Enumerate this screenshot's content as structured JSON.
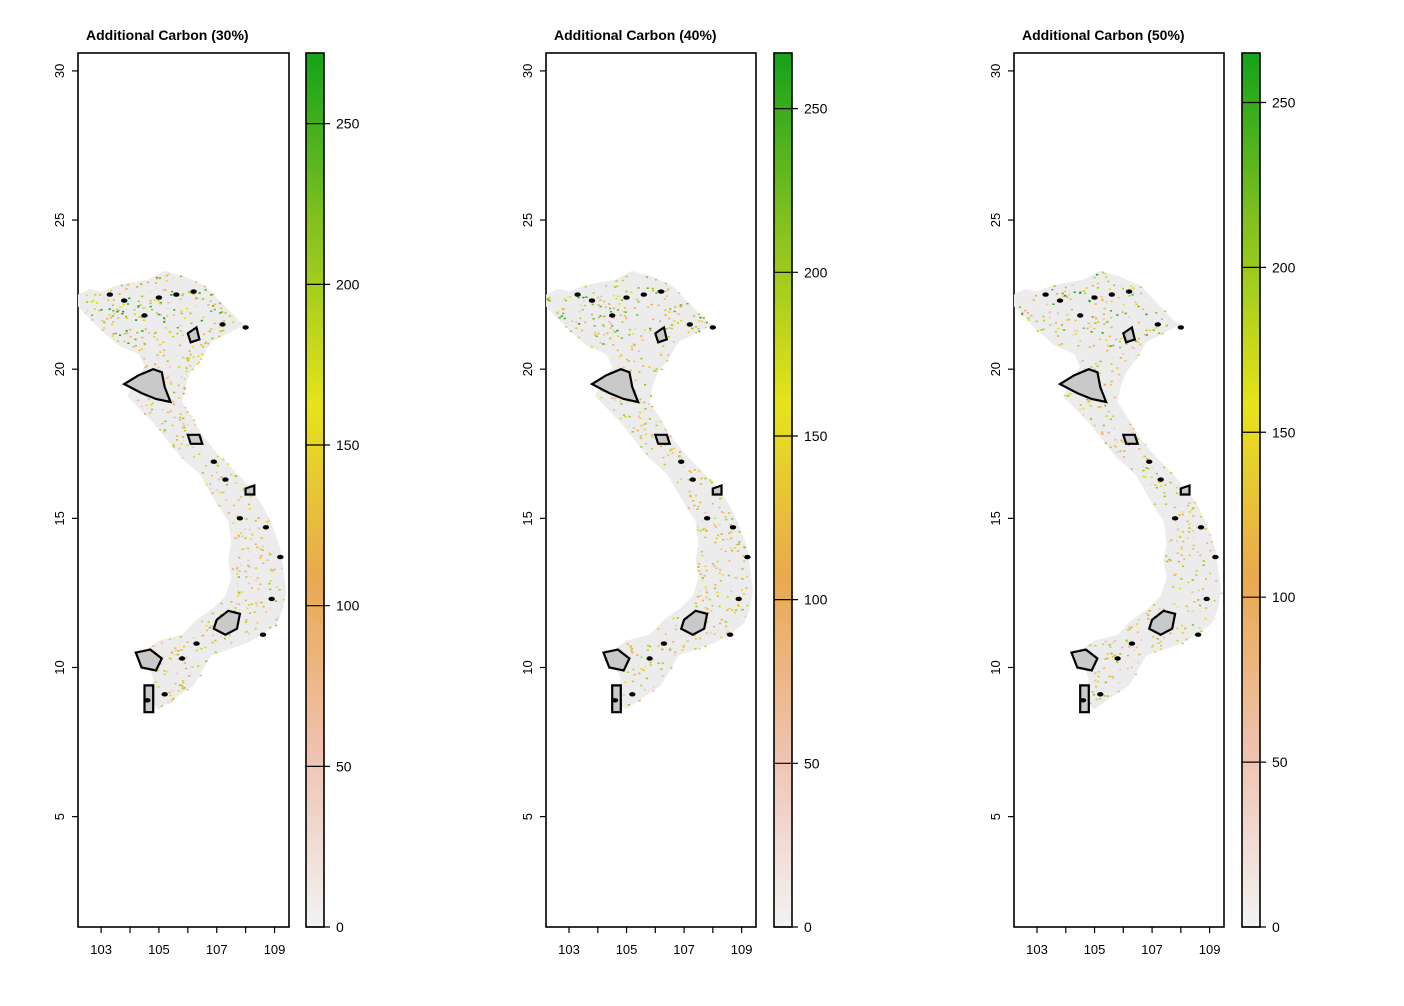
{
  "panels": [
    {
      "title": "Additional Carbon (30%)",
      "colorbar_max": 272,
      "colorbar_ticks": [
        "0",
        "50",
        "100",
        "150",
        "200",
        "250"
      ],
      "scenario_fraction": 0.3
    },
    {
      "title": "Additional Carbon (40%)",
      "colorbar_max": 267,
      "colorbar_ticks": [
        "0",
        "50",
        "100",
        "150",
        "200",
        "250"
      ],
      "scenario_fraction": 0.4
    },
    {
      "title": "Additional Carbon (50%)",
      "colorbar_max": 265,
      "colorbar_ticks": [
        "0",
        "50",
        "100",
        "150",
        "200",
        "250"
      ],
      "scenario_fraction": 0.5
    }
  ],
  "x_axis": {
    "ticks": [
      "103",
      "105",
      "107",
      "109"
    ],
    "range": [
      102.2,
      109.5
    ]
  },
  "y_axis": {
    "ticks": [
      "5",
      "10",
      "15",
      "20",
      "25",
      "30"
    ],
    "range": [
      1.3,
      30.6
    ]
  },
  "colors": {
    "ramp": [
      "#f2f2f2",
      "#efc2b0",
      "#e9a94f",
      "#e6e31a",
      "#88c21f",
      "#17a31a"
    ],
    "country_fill": "#ececec",
    "protected_area_fill": "#c9c9c9",
    "outline": "#000000"
  },
  "icons": {
    "protected_area": "polygon-outline-icon"
  }
}
